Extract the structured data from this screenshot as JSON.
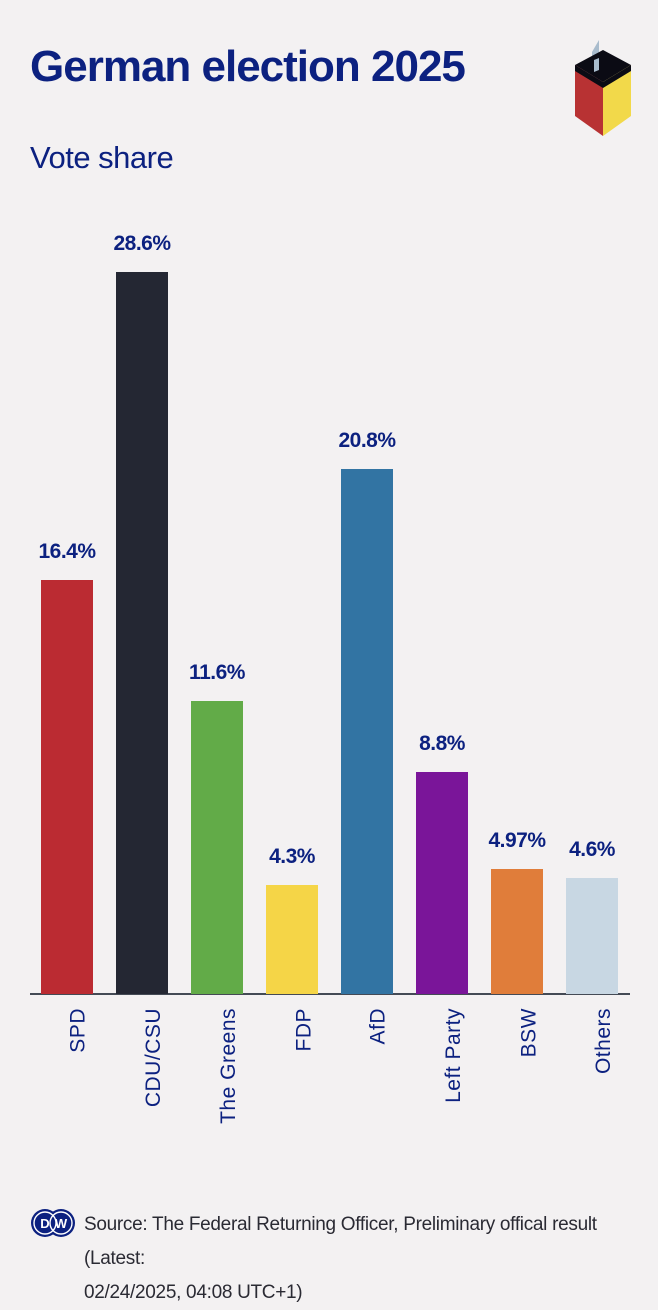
{
  "header": {
    "title": "German election 2025",
    "subtitle": "Vote share"
  },
  "footer": {
    "logo": "DW",
    "source_line1": "Source: The Federal Returning Officer, Preliminary offical result (Latest:",
    "source_line2": "02/24/2025, 04:08 UTC+1)"
  },
  "icons": {
    "ballot_box": "ballot-box-icon",
    "dw_logo": "dw-logo-icon"
  },
  "chart_data": {
    "type": "bar",
    "title": "German election 2025",
    "subtitle": "Vote share",
    "xlabel": "",
    "ylabel": "",
    "ylim": [
      0,
      30
    ],
    "grid": false,
    "legend": null,
    "categories": [
      "SPD",
      "CDU/CSU",
      "The Greens",
      "FDP",
      "AfD",
      "Left Party",
      "BSW",
      "Others"
    ],
    "values": [
      16.4,
      28.6,
      11.6,
      4.3,
      20.8,
      8.8,
      4.97,
      4.6
    ],
    "labels": [
      "16.4%",
      "28.6%",
      "11.6%",
      "4.3%",
      "20.8%",
      "8.8%",
      "4.97%",
      "4.6%"
    ],
    "colors": [
      "#bb2b32",
      "#242733",
      "#62ab48",
      "#f5d547",
      "#3274a3",
      "#7a1599",
      "#e07d3a",
      "#c8d7e3"
    ]
  },
  "colors": {
    "title": "#0c2180",
    "background": "#f3f1f2",
    "axis": "#444a55"
  }
}
